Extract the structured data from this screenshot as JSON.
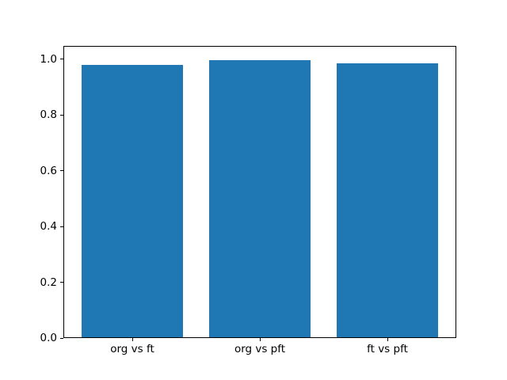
{
  "figure": {
    "background_color": "#ffffff",
    "bar_color": "#1f77b4",
    "axis_color": "#000000",
    "text_color": "#000000"
  },
  "chart_data": {
    "type": "bar",
    "title": "",
    "xlabel": "",
    "ylabel": "",
    "categories": [
      "org vs ft",
      "org vs pft",
      "ft vs pft"
    ],
    "values": [
      0.979,
      0.997,
      0.985
    ],
    "bar_width": 0.8,
    "xlim": [
      -0.54,
      2.54
    ],
    "ylim": [
      0,
      1.047
    ],
    "yticks": [
      0.0,
      0.2,
      0.4,
      0.6,
      0.8,
      1.0
    ],
    "ytick_labels": [
      "0.0",
      "0.2",
      "0.4",
      "0.6",
      "0.8",
      "1.0"
    ],
    "grid": false,
    "legend": null
  }
}
